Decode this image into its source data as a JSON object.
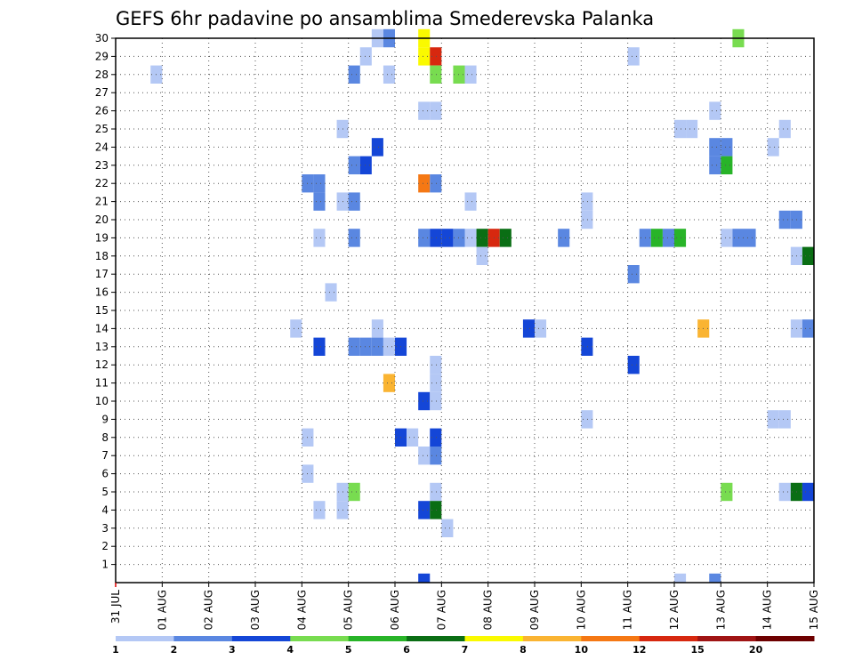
{
  "chart_data": {
    "type": "heatmap",
    "title": "GEFS 6hr padavine po ansamblima Smederevska Palanka",
    "xlabel": "",
    "ylabel": "",
    "x_ticks": [
      "31 JUL",
      "01 AUG",
      "02 AUG",
      "03 AUG",
      "04 AUG",
      "05 AUG",
      "06 AUG",
      "07 AUG",
      "08 AUG",
      "09 AUG",
      "10 AUG",
      "11 AUG",
      "12 AUG",
      "13 AUG",
      "14 AUG",
      "15 AUG"
    ],
    "x_range_days": [
      0,
      15
    ],
    "time_step_days": 0.25,
    "y_ticks": [
      1,
      2,
      3,
      4,
      5,
      6,
      7,
      8,
      9,
      10,
      11,
      12,
      13,
      14,
      15,
      16,
      17,
      18,
      19,
      20,
      21,
      22,
      23,
      24,
      25,
      26,
      27,
      28,
      29,
      30
    ],
    "y_range": [
      0,
      30
    ],
    "grid": "dotted",
    "colorbar": {
      "labels": [
        "1",
        "2",
        "3",
        "4",
        "5",
        "6",
        "7",
        "8",
        "10",
        "12",
        "15",
        "20"
      ],
      "colors": [
        "#b4c8f5",
        "#5a87e1",
        "#1446d7",
        "#78dc50",
        "#28b428",
        "#0a6e14",
        "#fafa00",
        "#fab432",
        "#f57814",
        "#d7280f",
        "#a01414",
        "#6e0000"
      ]
    },
    "cells": [
      [
        5.5,
        30,
        1
      ],
      [
        5.75,
        30,
        2
      ],
      [
        6.5,
        30,
        7
      ],
      [
        13.25,
        30,
        4
      ],
      [
        5.25,
        29,
        1
      ],
      [
        6.5,
        29,
        7
      ],
      [
        6.75,
        29,
        12
      ],
      [
        11.0,
        29,
        1
      ],
      [
        0.75,
        28,
        1
      ],
      [
        5.0,
        28,
        2
      ],
      [
        5.75,
        28,
        1
      ],
      [
        6.75,
        28,
        4
      ],
      [
        7.25,
        28,
        4
      ],
      [
        7.5,
        28,
        1
      ],
      [
        6.5,
        26,
        1
      ],
      [
        6.75,
        26,
        1
      ],
      [
        12.75,
        26,
        1
      ],
      [
        4.75,
        25,
        1
      ],
      [
        12.0,
        25,
        1
      ],
      [
        12.25,
        25,
        1
      ],
      [
        14.25,
        25,
        1
      ],
      [
        5.5,
        24,
        3
      ],
      [
        12.75,
        24,
        2
      ],
      [
        13.0,
        24,
        2
      ],
      [
        14.0,
        24,
        1
      ],
      [
        5.0,
        23,
        2
      ],
      [
        5.25,
        23,
        3
      ],
      [
        12.75,
        23,
        2
      ],
      [
        13.0,
        23,
        5
      ],
      [
        4.0,
        22,
        2
      ],
      [
        4.25,
        22,
        2
      ],
      [
        6.5,
        22,
        10
      ],
      [
        6.75,
        22,
        2
      ],
      [
        4.25,
        21,
        2
      ],
      [
        4.75,
        21,
        1
      ],
      [
        5.0,
        21,
        2
      ],
      [
        7.5,
        21,
        1
      ],
      [
        10.0,
        21,
        1
      ],
      [
        10.0,
        20,
        1
      ],
      [
        14.25,
        20,
        2
      ],
      [
        14.5,
        20,
        2
      ],
      [
        4.25,
        19,
        1
      ],
      [
        5.0,
        19,
        2
      ],
      [
        6.5,
        19,
        2
      ],
      [
        6.75,
        19,
        3
      ],
      [
        7.0,
        19,
        3
      ],
      [
        7.25,
        19,
        2
      ],
      [
        7.5,
        19,
        1
      ],
      [
        7.75,
        19,
        6
      ],
      [
        8.0,
        19,
        12
      ],
      [
        8.25,
        19,
        6
      ],
      [
        9.5,
        19,
        2
      ],
      [
        11.25,
        19,
        2
      ],
      [
        11.5,
        19,
        5
      ],
      [
        11.75,
        19,
        2
      ],
      [
        12.0,
        19,
        5
      ],
      [
        13.0,
        19,
        1
      ],
      [
        13.25,
        19,
        2
      ],
      [
        13.5,
        19,
        2
      ],
      [
        7.75,
        18,
        1
      ],
      [
        14.5,
        18,
        1
      ],
      [
        14.75,
        18,
        6
      ],
      [
        11.0,
        17,
        2
      ],
      [
        4.5,
        16,
        1
      ],
      [
        3.75,
        14,
        1
      ],
      [
        5.5,
        14,
        1
      ],
      [
        8.75,
        14,
        3
      ],
      [
        9.0,
        14,
        1
      ],
      [
        12.5,
        14,
        8
      ],
      [
        14.5,
        14,
        1
      ],
      [
        14.75,
        14,
        2
      ],
      [
        4.25,
        13,
        3
      ],
      [
        5.0,
        13,
        2
      ],
      [
        5.25,
        13,
        2
      ],
      [
        5.5,
        13,
        2
      ],
      [
        5.75,
        13,
        1
      ],
      [
        6.0,
        13,
        3
      ],
      [
        10.0,
        13,
        3
      ],
      [
        6.75,
        12,
        1
      ],
      [
        11.0,
        12,
        3
      ],
      [
        5.75,
        11,
        8
      ],
      [
        6.75,
        11,
        1
      ],
      [
        6.5,
        10,
        3
      ],
      [
        6.75,
        10,
        1
      ],
      [
        10.0,
        9,
        1
      ],
      [
        14.0,
        9,
        1
      ],
      [
        14.25,
        9,
        1
      ],
      [
        4.0,
        8,
        1
      ],
      [
        6.0,
        8,
        3
      ],
      [
        6.25,
        8,
        1
      ],
      [
        6.75,
        8,
        3
      ],
      [
        6.5,
        7,
        1
      ],
      [
        6.75,
        7,
        2
      ],
      [
        4.0,
        6,
        1
      ],
      [
        4.75,
        5,
        1
      ],
      [
        5.0,
        5,
        4
      ],
      [
        6.75,
        5,
        1
      ],
      [
        13.0,
        5,
        4
      ],
      [
        14.25,
        5,
        1
      ],
      [
        14.5,
        5,
        6
      ],
      [
        14.75,
        5,
        3
      ],
      [
        4.25,
        4,
        1
      ],
      [
        4.75,
        4,
        1
      ],
      [
        6.5,
        4,
        3
      ],
      [
        6.75,
        4,
        6
      ],
      [
        7.0,
        3,
        1
      ],
      [
        6.5,
        0.3,
        3
      ],
      [
        12.0,
        0.3,
        1
      ],
      [
        12.75,
        0.3,
        2
      ]
    ]
  }
}
